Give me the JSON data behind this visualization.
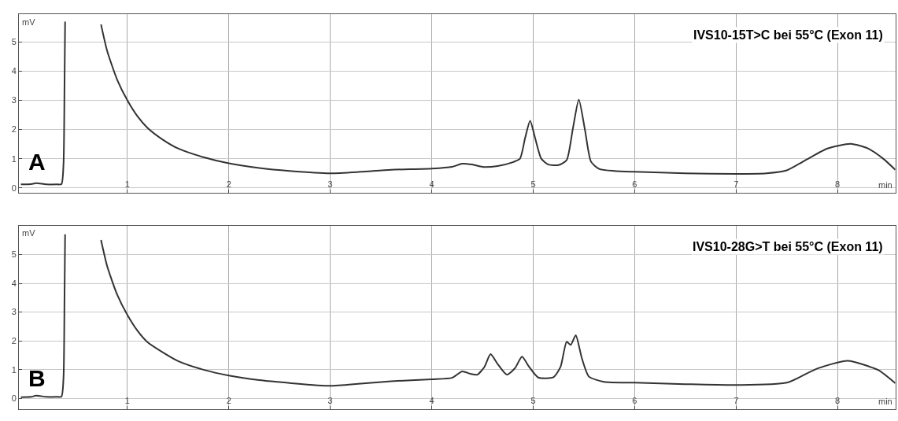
{
  "chart_data": [
    {
      "type": "line",
      "title": "IVS10-15T>C bei 55°C (Exon 11)",
      "xlabel": "min",
      "ylabel": "mV",
      "annotations": [
        "A"
      ],
      "grid": true,
      "marker": "none",
      "line_style": "solid",
      "xlim": [
        -0.07,
        8.57
      ],
      "ylim": [
        -0.17,
        5.95
      ],
      "xticks": [
        1,
        2,
        3,
        4,
        5,
        6,
        7,
        8
      ],
      "yticks": [
        0,
        1,
        2,
        3,
        4,
        5
      ],
      "series": [
        {
          "color": "#333333",
          "x": [
            -0.05,
            0.05,
            0.1,
            0.2,
            0.3,
            0.35,
            0.37,
            0.38,
            0.386,
            0.56,
            0.74,
            0.8,
            0.9,
            1.0,
            1.1,
            1.2,
            1.35,
            1.5,
            1.75,
            2.0,
            2.3,
            2.6,
            3.0,
            3.3,
            3.6,
            4.0,
            4.2,
            4.3,
            4.4,
            4.5,
            4.65,
            4.8,
            4.87,
            4.92,
            4.97,
            5.02,
            5.08,
            5.15,
            5.25,
            5.33,
            5.39,
            5.45,
            5.51,
            5.57,
            5.65,
            5.8,
            6.0,
            6.5,
            7.0,
            7.3,
            7.5,
            7.7,
            7.9,
            8.13,
            8.3,
            8.45,
            8.57
          ],
          "values": [
            0.12,
            0.13,
            0.16,
            0.12,
            0.12,
            0.13,
            0.8,
            3.5,
            5.7,
            null,
            5.6,
            4.7,
            3.7,
            3.0,
            2.45,
            2.05,
            1.65,
            1.35,
            1.05,
            0.84,
            0.68,
            0.58,
            0.5,
            0.55,
            0.62,
            0.66,
            0.72,
            0.83,
            0.8,
            0.72,
            0.75,
            0.88,
            1.0,
            1.7,
            2.3,
            1.7,
            1.0,
            0.8,
            0.78,
            0.95,
            2.0,
            3.03,
            2.0,
            0.9,
            0.65,
            0.58,
            0.55,
            0.5,
            0.48,
            0.5,
            0.6,
            0.98,
            1.35,
            1.51,
            1.35,
            1.0,
            0.62
          ]
        }
      ]
    },
    {
      "type": "line",
      "title": "IVS10-28G>T bei 55°C (Exon 11)",
      "xlabel": "min",
      "ylabel": "mV",
      "annotations": [
        "B"
      ],
      "grid": true,
      "marker": "none",
      "line_style": "solid",
      "xlim": [
        -0.07,
        8.57
      ],
      "ylim": [
        -0.37,
        6.0
      ],
      "xticks": [
        1,
        2,
        3,
        4,
        5,
        6,
        7,
        8
      ],
      "yticks": [
        0,
        1,
        2,
        3,
        4,
        5
      ],
      "series": [
        {
          "color": "#333333",
          "x": [
            -0.05,
            0.05,
            0.1,
            0.2,
            0.3,
            0.35,
            0.37,
            0.38,
            0.386,
            0.56,
            0.74,
            0.8,
            0.9,
            1.0,
            1.1,
            1.2,
            1.35,
            1.5,
            1.75,
            2.0,
            2.3,
            2.6,
            3.0,
            3.3,
            3.6,
            4.0,
            4.2,
            4.3,
            4.38,
            4.45,
            4.52,
            4.58,
            4.65,
            4.74,
            4.82,
            4.89,
            4.96,
            5.05,
            5.2,
            5.27,
            5.33,
            5.37,
            5.42,
            5.48,
            5.55,
            5.7,
            6.0,
            6.5,
            7.0,
            7.5,
            7.8,
            8.1,
            8.4,
            8.57
          ],
          "values": [
            0.05,
            0.06,
            0.1,
            0.06,
            0.06,
            0.07,
            0.7,
            3.5,
            5.7,
            null,
            5.5,
            4.6,
            3.6,
            2.9,
            2.35,
            1.95,
            1.6,
            1.3,
            1.0,
            0.8,
            0.64,
            0.54,
            0.44,
            0.52,
            0.6,
            0.67,
            0.72,
            0.94,
            0.86,
            0.83,
            1.1,
            1.54,
            1.2,
            0.83,
            1.05,
            1.45,
            1.1,
            0.73,
            0.74,
            1.1,
            1.97,
            1.86,
            2.2,
            1.4,
            0.76,
            0.58,
            0.55,
            0.5,
            0.47,
            0.55,
            1.04,
            1.31,
            0.99,
            0.53
          ]
        }
      ]
    }
  ]
}
